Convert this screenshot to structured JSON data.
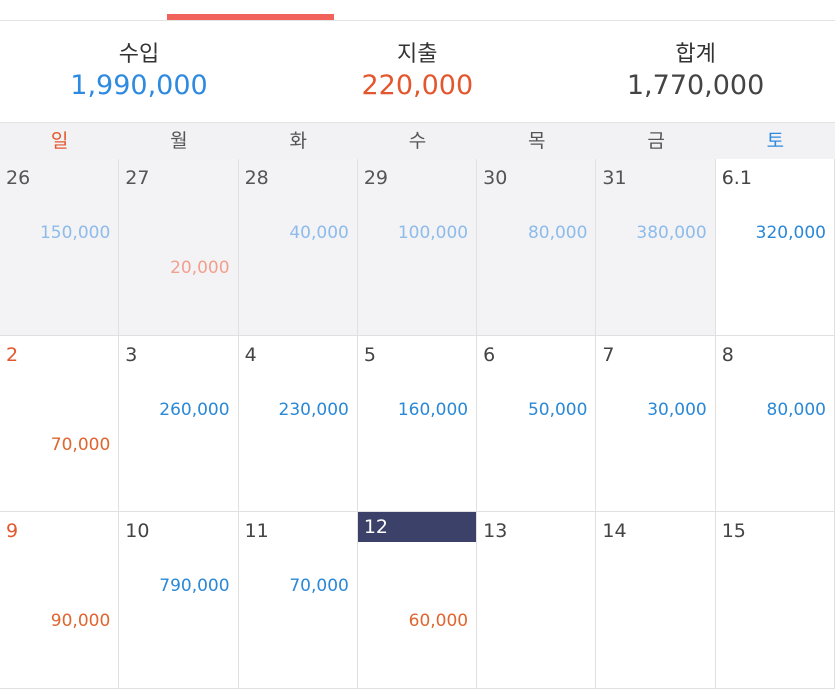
{
  "summary": [
    {
      "label": "수입",
      "value": "1,990,000"
    },
    {
      "label": "지출",
      "value": "220,000"
    },
    {
      "label": "합계",
      "value": "1,770,000"
    }
  ],
  "weekdays": [
    "일",
    "월",
    "화",
    "수",
    "목",
    "금",
    "토"
  ],
  "weeks": [
    [
      {
        "day": "26",
        "income": "150,000"
      },
      {
        "day": "27",
        "expense": "20,000"
      },
      {
        "day": "28",
        "income": "40,000"
      },
      {
        "day": "29",
        "income": "100,000"
      },
      {
        "day": "30",
        "income": "80,000"
      },
      {
        "day": "31",
        "income": "380,000"
      },
      {
        "day": "6.1",
        "income": "320,000"
      }
    ],
    [
      {
        "day": "2",
        "expense": "70,000"
      },
      {
        "day": "3",
        "income": "260,000"
      },
      {
        "day": "4",
        "income": "230,000"
      },
      {
        "day": "5",
        "income": "160,000"
      },
      {
        "day": "6",
        "income": "50,000"
      },
      {
        "day": "7",
        "income": "30,000"
      },
      {
        "day": "8",
        "income": "80,000"
      }
    ],
    [
      {
        "day": "9",
        "expense": "90,000"
      },
      {
        "day": "10",
        "income": "790,000"
      },
      {
        "day": "11",
        "income": "70,000"
      },
      {
        "day": "12",
        "expense": "60,000"
      },
      {
        "day": "13"
      },
      {
        "day": "14"
      },
      {
        "day": "15"
      }
    ]
  ]
}
